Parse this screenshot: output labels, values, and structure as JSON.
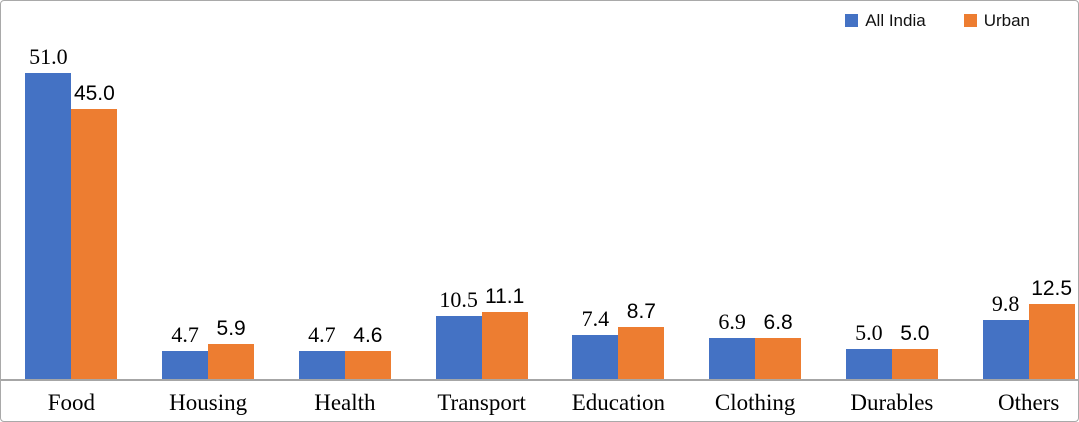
{
  "chart_data": {
    "type": "bar",
    "title": "",
    "categories": [
      "Food",
      "Housing",
      "Health",
      "Transport",
      "Education",
      "Clothing",
      "Durables",
      "Others"
    ],
    "series": [
      {
        "name": "All India",
        "color": "#4472C4",
        "values": [
          51.0,
          4.7,
          4.7,
          10.5,
          7.4,
          6.9,
          5.0,
          9.8
        ]
      },
      {
        "name": "Urban",
        "color": "#ED7D31",
        "values": [
          45.0,
          5.9,
          4.6,
          11.1,
          8.7,
          6.8,
          5.0,
          12.5
        ]
      }
    ],
    "xlabel": "",
    "ylabel": "",
    "ylim": [
      0,
      60
    ],
    "grid": false,
    "y_axis_visible": false,
    "value_labels": true,
    "value_label_decimals": 1,
    "legend_position": "top-right"
  },
  "colors": {
    "all_india": "#4472C4",
    "urban": "#ED7D31",
    "axis_line": "#a6a6a6",
    "frame_border": "#a9a9a9",
    "label_text": "#000000"
  }
}
